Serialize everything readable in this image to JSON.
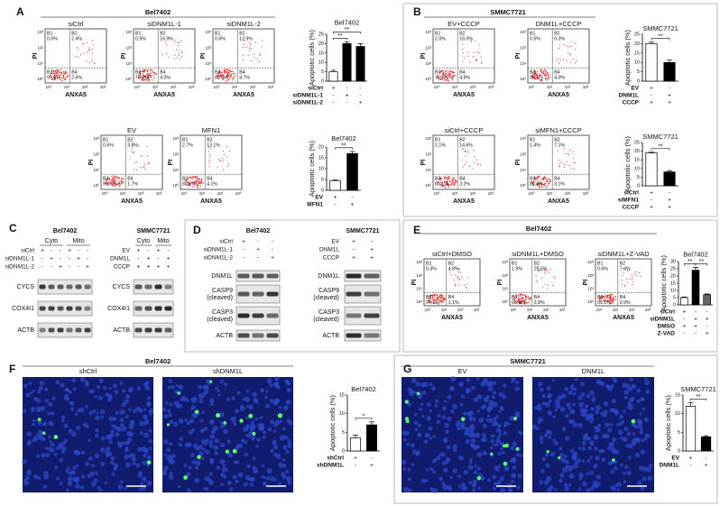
{
  "ylabel": "Apoptotic cells (%)",
  "flow_axis": {
    "x": "ANXA5",
    "y": "PI",
    "ticks": [
      "10⁰",
      "10¹",
      "10²",
      "10³"
    ]
  },
  "A": {
    "letter": "A",
    "header": "Bel7402",
    "flows": [
      {
        "label": "siCtrl",
        "quadrants": [
          [
            "B1",
            "0.0%"
          ],
          [
            "B2",
            "2.4%"
          ],
          [
            "B3",
            "95.0%"
          ],
          [
            "B4",
            "2.6%"
          ]
        ]
      },
      {
        "label": "siDNM1L-1",
        "quadrants": [
          [
            "B1",
            "0.9%"
          ],
          [
            "B2",
            "16.9%"
          ],
          [
            "B3",
            "78.2%"
          ],
          [
            "B4",
            "4.0%"
          ]
        ]
      },
      {
        "label": "siDNM1L-2",
        "quadrants": [
          [
            "B1",
            "0.6%"
          ],
          [
            "B2",
            "13.9%"
          ],
          [
            "B3",
            "80.8%"
          ],
          [
            "B4",
            "4.7%"
          ]
        ]
      },
      {
        "label": "EV",
        "quadrants": [
          [
            "B1",
            "0.6%"
          ],
          [
            "B2",
            "3.8%"
          ],
          [
            "B3",
            "93.6%"
          ],
          [
            "B4",
            "1.7%"
          ]
        ]
      },
      {
        "label": "MFN1",
        "quadrants": [
          [
            "B1",
            "2.7%"
          ],
          [
            "B2",
            "13.1%"
          ],
          [
            "B3",
            "80.1%"
          ],
          [
            "B4",
            "4.1%"
          ]
        ]
      }
    ],
    "charts": [
      {
        "type": "bar",
        "title": "Bel7402",
        "ylim": [
          0,
          25
        ],
        "yticks": [
          0,
          5,
          10,
          15,
          20,
          25
        ],
        "values": [
          5,
          20,
          18.5
        ],
        "errors": [
          0.8,
          1,
          1.5
        ],
        "fills": [
          "#ffffff",
          "#000000",
          "#000000"
        ],
        "significance": [
          "**",
          "**"
        ],
        "conditions": [
          {
            "label": "siCtrl",
            "marks": [
              "+",
              "-",
              "-"
            ]
          },
          {
            "label": "siDNM1L-1",
            "marks": [
              "-",
              "+",
              "-"
            ]
          },
          {
            "label": "siDNM1L-2",
            "marks": [
              "-",
              "-",
              "+"
            ]
          }
        ]
      },
      {
        "type": "bar",
        "title": "Bel7402",
        "ylim": [
          0,
          20
        ],
        "yticks": [
          0,
          5,
          10,
          15,
          20
        ],
        "values": [
          4.5,
          17
        ],
        "errors": [
          0.3,
          1
        ],
        "fills": [
          "#ffffff",
          "#000000"
        ],
        "significance": [
          "**"
        ],
        "conditions": [
          {
            "label": "EV",
            "marks": [
              "+",
              "-"
            ]
          },
          {
            "label": "MFN1",
            "marks": [
              "-",
              "+"
            ]
          }
        ]
      }
    ]
  },
  "B": {
    "letter": "B",
    "header": "SMMC7721",
    "flows": [
      {
        "label": "EV+CCCP",
        "quadrants": [
          [
            "B1",
            "2.0%"
          ],
          [
            "B2",
            "16.0%"
          ],
          [
            "B3",
            "77.1%"
          ],
          [
            "B4",
            "4.9%"
          ]
        ]
      },
      {
        "label": "DNM1L+CCCP",
        "quadrants": [
          [
            "B1",
            "0.5%"
          ],
          [
            "B2",
            "0.3%"
          ],
          [
            "B3",
            "95.1%"
          ],
          [
            "B4",
            "4.0%"
          ]
        ]
      },
      {
        "label": "siCtrl+CCCP",
        "quadrants": [
          [
            "B1",
            "2.1%"
          ],
          [
            "B2",
            "14.6%"
          ],
          [
            "B3",
            "80.1%"
          ],
          [
            "B4",
            "3.2%"
          ]
        ]
      },
      {
        "label": "siMFN1+CCCP",
        "quadrants": [
          [
            "B1",
            "1.4%"
          ],
          [
            "B2",
            "7.1%"
          ],
          [
            "B3",
            "88.4%"
          ],
          [
            "B4",
            "3.1%"
          ]
        ]
      }
    ],
    "charts": [
      {
        "type": "bar",
        "title": "SMMC7721",
        "ylim": [
          0,
          25
        ],
        "yticks": [
          0,
          5,
          10,
          15,
          20,
          25
        ],
        "values": [
          20,
          10
        ],
        "errors": [
          0.8,
          1.2
        ],
        "fills": [
          "#ffffff",
          "#000000"
        ],
        "significance": [
          "**"
        ],
        "conditions": [
          {
            "label": "EV",
            "marks": [
              "+",
              "-"
            ]
          },
          {
            "label": "DNM1L",
            "marks": [
              "-",
              "+"
            ]
          },
          {
            "label": "CCCP",
            "marks": [
              "+",
              "+"
            ]
          }
        ]
      },
      {
        "type": "bar",
        "title": "SMMC7721",
        "ylim": [
          0,
          25
        ],
        "yticks": [
          0,
          5,
          10,
          15,
          20,
          25
        ],
        "values": [
          19,
          8
        ],
        "errors": [
          0.4,
          0.8
        ],
        "fills": [
          "#ffffff",
          "#000000"
        ],
        "significance": [
          "**"
        ],
        "conditions": [
          {
            "label": "siCtrl",
            "marks": [
              "+",
              "-"
            ]
          },
          {
            "label": "siMFN1",
            "marks": [
              "-",
              "+"
            ]
          },
          {
            "label": "CCCP",
            "marks": [
              "+",
              "+"
            ]
          }
        ]
      }
    ]
  },
  "C": {
    "letter": "C",
    "blots": [
      {
        "cell": "Bel7402",
        "fractions": [
          "Cyto",
          "Mito"
        ],
        "conditions": [
          {
            "label": "siCtrl",
            "marks": [
              "+",
              "-",
              "-",
              "+",
              "-",
              "-"
            ]
          },
          {
            "label": "siDNM1L-1",
            "marks": [
              "-",
              "+",
              "-",
              "-",
              "+",
              "-"
            ]
          },
          {
            "label": "siDNM1L-2",
            "marks": [
              "-",
              "-",
              "+",
              "-",
              "-",
              "+"
            ]
          }
        ],
        "bands": [
          [
            "CYCS"
          ],
          [
            "COX4I1"
          ],
          [
            "ACTB"
          ]
        ]
      },
      {
        "cell": "SMMC7721",
        "fractions": [
          "Cyto",
          "Mito"
        ],
        "conditions": [
          {
            "label": "EV",
            "marks": [
              "+",
              "-",
              "+",
              "-"
            ]
          },
          {
            "label": "DNM1L",
            "marks": [
              "-",
              "+",
              "-",
              "+"
            ]
          },
          {
            "label": "CCCP",
            "marks": [
              "+",
              "+",
              "+",
              "+"
            ]
          }
        ],
        "bands": [
          [
            "CYCS"
          ],
          [
            "COX4I1"
          ],
          [
            "ACTB"
          ]
        ]
      }
    ]
  },
  "D": {
    "letter": "D",
    "blots": [
      {
        "cell": "Bel7402",
        "conditions": [
          {
            "label": "siCtrl",
            "marks": [
              "+",
              "-",
              "-"
            ]
          },
          {
            "label": "siDNM1L-1",
            "marks": [
              "-",
              "+",
              "-"
            ]
          },
          {
            "label": "siDNM1L-2",
            "marks": [
              "-",
              "-",
              "+"
            ]
          }
        ],
        "bands": [
          [
            "DNM1L"
          ],
          [
            "CASP9",
            "(cleaved)"
          ],
          [
            "CASP3",
            "(cleaved)"
          ],
          [
            "ACTB"
          ]
        ]
      },
      {
        "cell": "SMMC7721",
        "conditions": [
          {
            "label": "EV",
            "marks": [
              "+",
              "-"
            ]
          },
          {
            "label": "DNM1L",
            "marks": [
              "-",
              "+"
            ]
          },
          {
            "label": "CCCP",
            "marks": [
              "+",
              "+"
            ]
          }
        ],
        "bands": [
          [
            "DNM1L"
          ],
          [
            "CASP9",
            "(cleaved)"
          ],
          [
            "CASP3",
            "(cleaved)"
          ],
          [
            "ACTB"
          ]
        ]
      }
    ]
  },
  "E": {
    "letter": "E",
    "header": "Bel7402",
    "flows": [
      {
        "label": "siCtrl+DMSO",
        "quadrants": [
          [
            "B1",
            "0.3%"
          ],
          [
            "B2",
            "4.8%"
          ],
          [
            "B3",
            "94.1%"
          ],
          [
            "B4",
            "1.1%"
          ]
        ]
      },
      {
        "label": "siDNM1L+DMSO",
        "quadrants": [
          [
            "B1",
            "1.9%"
          ],
          [
            "B2",
            "28.5%"
          ],
          [
            "B3",
            "66.9%"
          ],
          [
            "B4",
            "2.8%"
          ]
        ]
      },
      {
        "label": "siDNM1L+Z-VAD",
        "quadrants": [
          [
            "B1",
            "0.6%"
          ],
          [
            "B2",
            "7.4%"
          ],
          [
            "B3",
            "91.1%"
          ],
          [
            "B4",
            "0.9%"
          ]
        ]
      }
    ],
    "charts": [
      {
        "type": "bar",
        "title": "Bel7402",
        "ylim": [
          0,
          30
        ],
        "yticks": [
          0,
          5,
          10,
          15,
          20,
          25,
          30
        ],
        "values": [
          5,
          24,
          7
        ],
        "errors": [
          0.5,
          2,
          0.5
        ],
        "fills": [
          "#ffffff",
          "#000000",
          "#666666"
        ],
        "significance": [
          "**",
          "**"
        ],
        "conditions": [
          {
            "label": "siCtrl",
            "marks": [
              "+",
              "-",
              "-"
            ]
          },
          {
            "label": "siDNM1L",
            "marks": [
              "-",
              "+",
              "+"
            ]
          },
          {
            "label": "DMSO",
            "marks": [
              "+",
              "+",
              "-"
            ]
          },
          {
            "label": "Z-VAD",
            "marks": [
              "-",
              "-",
              "+"
            ]
          }
        ]
      }
    ]
  },
  "F": {
    "letter": "F",
    "header": "Bel7402",
    "images": [
      "shCtrl",
      "shDNM1L"
    ],
    "charts": [
      {
        "type": "bar",
        "title": "Bel7402",
        "ylim": [
          0,
          15
        ],
        "yticks": [
          0,
          5,
          10,
          15
        ],
        "values": [
          3.5,
          7
        ],
        "errors": [
          0.8,
          0.8
        ],
        "fills": [
          "#ffffff",
          "#000000"
        ],
        "significance": [
          "*"
        ],
        "conditions": [
          {
            "label": "shCtrl",
            "marks": [
              "+",
              "-"
            ]
          },
          {
            "label": "shDNM1L",
            "marks": [
              "-",
              "+"
            ]
          }
        ]
      }
    ]
  },
  "G": {
    "letter": "G",
    "header": "SMMC7721",
    "images": [
      "EV",
      "DNM1L"
    ],
    "charts": [
      {
        "type": "bar",
        "title": "SMMC7721",
        "ylim": [
          0,
          15
        ],
        "yticks": [
          0,
          5,
          10,
          15
        ],
        "values": [
          12,
          3.8
        ],
        "errors": [
          1,
          0.3
        ],
        "fills": [
          "#ffffff",
          "#000000"
        ],
        "significance": [
          "**"
        ],
        "conditions": [
          {
            "label": "EV",
            "marks": [
              "+",
              "-"
            ]
          },
          {
            "label": "DNM1L",
            "marks": [
              "-",
              "+"
            ]
          }
        ]
      }
    ]
  }
}
